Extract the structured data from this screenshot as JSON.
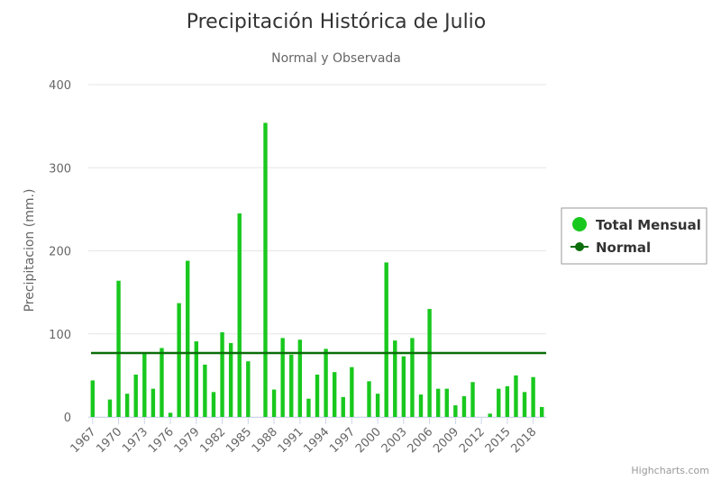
{
  "chart_data": {
    "type": "bar",
    "title": "Precipitación Histórica de Julio",
    "subtitle": "Normal y Observada",
    "ylabel": "Precipitacion (mm.)",
    "xlabel": "",
    "ylim": [
      0,
      400
    ],
    "yticks": [
      0,
      100,
      200,
      300,
      400
    ],
    "grid": true,
    "legend_position": "right",
    "x_tick_labels": [
      "1967",
      "1970",
      "1973",
      "1976",
      "1979",
      "1982",
      "1985",
      "1988",
      "1991",
      "1994",
      "1997",
      "2000",
      "2003",
      "2006",
      "2009",
      "2012",
      "2015",
      "2018"
    ],
    "categories": [
      1967,
      1968,
      1969,
      1970,
      1971,
      1972,
      1973,
      1974,
      1975,
      1976,
      1977,
      1978,
      1979,
      1980,
      1981,
      1982,
      1983,
      1984,
      1985,
      1986,
      1987,
      1988,
      1989,
      1990,
      1991,
      1992,
      1993,
      1994,
      1995,
      1996,
      1997,
      1998,
      1999,
      2000,
      2001,
      2002,
      2003,
      2004,
      2005,
      2006,
      2007,
      2008,
      2009,
      2010,
      2011,
      2012,
      2013,
      2014,
      2015,
      2016,
      2017,
      2018,
      2019
    ],
    "series": [
      {
        "name": "Total Mensual",
        "type": "column",
        "color": "#19c81e",
        "values": [
          44,
          0,
          21,
          164,
          28,
          51,
          77,
          34,
          83,
          5,
          137,
          188,
          91,
          63,
          30,
          102,
          89,
          245,
          67,
          0,
          354,
          33,
          95,
          75,
          93,
          22,
          51,
          82,
          54,
          24,
          60,
          0,
          43,
          28,
          186,
          92,
          73,
          95,
          27,
          130,
          34,
          34,
          14,
          25,
          42,
          0,
          4,
          34,
          37,
          50,
          30,
          48,
          12
        ]
      },
      {
        "name": "Normal",
        "type": "line",
        "color": "#0a6e0a",
        "value": 77
      }
    ]
  },
  "credits": "Highcharts.com"
}
